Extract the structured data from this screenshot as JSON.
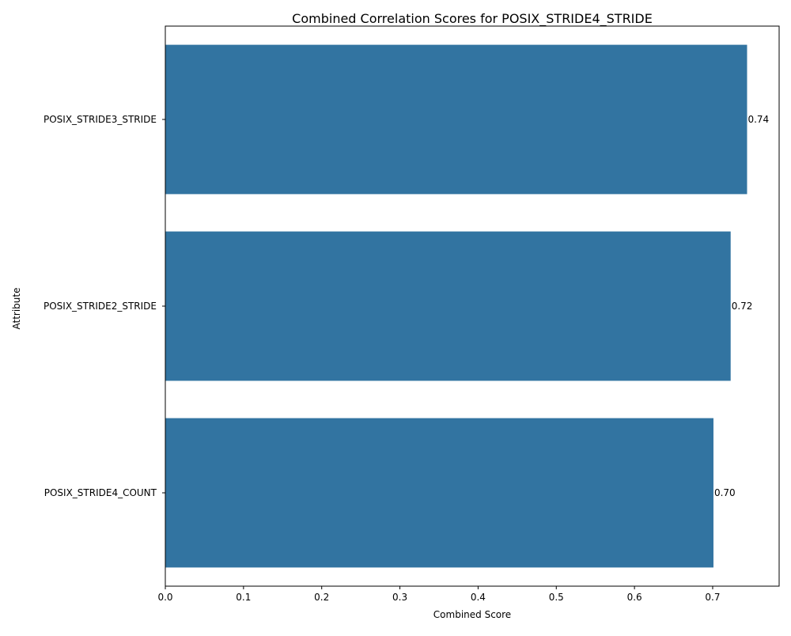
{
  "chart_data": {
    "type": "bar",
    "orientation": "horizontal",
    "title": "Combined Correlation Scores for POSIX_STRIDE4_STRIDE",
    "xlabel": "Combined Score",
    "ylabel": "Attribute",
    "categories": [
      "POSIX_STRIDE3_STRIDE",
      "POSIX_STRIDE2_STRIDE",
      "POSIX_STRIDE4_COUNT"
    ],
    "values": [
      0.744,
      0.723,
      0.701
    ],
    "data_labels": [
      "0.74",
      "0.72",
      "0.70"
    ],
    "xlim": [
      0,
      0.785
    ],
    "xticks": [
      0.0,
      0.1,
      0.2,
      0.3,
      0.4,
      0.5,
      0.6,
      0.7
    ],
    "xtick_labels": [
      "0.0",
      "0.1",
      "0.2",
      "0.3",
      "0.4",
      "0.5",
      "0.6",
      "0.7"
    ],
    "grid": false,
    "legend": "none",
    "colors": {
      "bar": "#3274a1",
      "axis": "#000000",
      "background": "#ffffff"
    }
  }
}
